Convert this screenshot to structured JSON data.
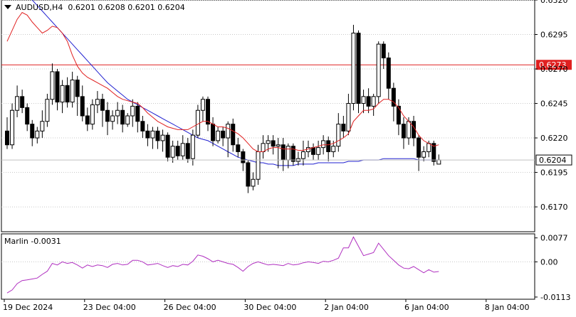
{
  "header": {
    "symbol": "AUDUSD,H4",
    "ohlc": "0.6201 0.6208 0.6201 0.6204"
  },
  "indicator": {
    "label": "Marlin -0.0031",
    "axis_labels": [
      "0.0077",
      "0.00",
      "-0.0113"
    ]
  },
  "colors": {
    "bull": "#ffffff",
    "bear": "#000000",
    "ma_fast": "#e02020",
    "ma_slow": "#2020d0",
    "hline": "#e02020",
    "marlin": "#b030c0",
    "grid": "#c8c8c8",
    "price_tag_bg": "#ffffff"
  },
  "chart_data": {
    "type": "candlestick",
    "price_axis_labels": [
      "0.6320",
      "0.6295",
      "0.6270",
      "0.6245",
      "0.6220",
      "0.6195",
      "0.6170"
    ],
    "price_axis_values": [
      0.632,
      0.6295,
      0.627,
      0.6245,
      0.622,
      0.6195,
      0.617
    ],
    "ylim": [
      0.6152,
      0.632
    ],
    "time_labels": [
      "19 Dec 2024",
      "23 Dec 04:00",
      "26 Dec 04:00",
      "30 Dec 04:00",
      "2 Jan 04:00",
      "6 Jan 04:00",
      "8 Jan 04:00"
    ],
    "time_label_bar_index": [
      0,
      16,
      32,
      48,
      64,
      80,
      96
    ],
    "horizontal_line": {
      "value": 0.6273,
      "label": "0.6273"
    },
    "current_price": {
      "value": 0.6204,
      "label": "0.6204"
    },
    "candles": [
      [
        0.6225,
        0.6215,
        0.6235,
        0.6212
      ],
      [
        0.6215,
        0.624,
        0.6245,
        0.6212
      ],
      [
        0.624,
        0.625,
        0.6258,
        0.6235
      ],
      [
        0.625,
        0.6242,
        0.6255,
        0.6238
      ],
      [
        0.6242,
        0.623,
        0.6245,
        0.6225
      ],
      [
        0.623,
        0.622,
        0.6233,
        0.6214
      ],
      [
        0.622,
        0.6225,
        0.6228,
        0.6216
      ],
      [
        0.6225,
        0.6232,
        0.624,
        0.622
      ],
      [
        0.6232,
        0.6248,
        0.6252,
        0.6228
      ],
      [
        0.6248,
        0.6268,
        0.6274,
        0.6244
      ],
      [
        0.6268,
        0.6246,
        0.627,
        0.624
      ],
      [
        0.6246,
        0.6258,
        0.6262,
        0.6238
      ],
      [
        0.6258,
        0.6246,
        0.6264,
        0.6242
      ],
      [
        0.6246,
        0.6262,
        0.6268,
        0.6242
      ],
      [
        0.6262,
        0.625,
        0.6265,
        0.6236
      ],
      [
        0.625,
        0.6236,
        0.6258,
        0.6232
      ],
      [
        0.6236,
        0.623,
        0.6242,
        0.6225
      ],
      [
        0.623,
        0.6244,
        0.6248,
        0.6226
      ],
      [
        0.6244,
        0.6248,
        0.6254,
        0.6238
      ],
      [
        0.6248,
        0.624,
        0.6252,
        0.6228
      ],
      [
        0.624,
        0.6232,
        0.6246,
        0.6222
      ],
      [
        0.6232,
        0.6236,
        0.624,
        0.6226
      ],
      [
        0.6236,
        0.624,
        0.6246,
        0.623
      ],
      [
        0.624,
        0.623,
        0.6244,
        0.6224
      ],
      [
        0.623,
        0.6236,
        0.6238,
        0.6228
      ],
      [
        0.6236,
        0.6243,
        0.6248,
        0.6228
      ],
      [
        0.6243,
        0.6232,
        0.6246,
        0.6224
      ],
      [
        0.6232,
        0.6225,
        0.6236,
        0.622
      ],
      [
        0.6225,
        0.622,
        0.623,
        0.6214
      ],
      [
        0.622,
        0.6225,
        0.6228,
        0.6212
      ],
      [
        0.6225,
        0.6218,
        0.6228,
        0.6212
      ],
      [
        0.6218,
        0.6222,
        0.6226,
        0.621
      ],
      [
        0.6222,
        0.6206,
        0.6224,
        0.6203
      ],
      [
        0.6206,
        0.6214,
        0.6218,
        0.6202
      ],
      [
        0.6214,
        0.6207,
        0.6218,
        0.6204
      ],
      [
        0.6207,
        0.6216,
        0.6222,
        0.6204
      ],
      [
        0.6216,
        0.6205,
        0.622,
        0.6202
      ],
      [
        0.6205,
        0.6222,
        0.6226,
        0.62
      ],
      [
        0.6222,
        0.624,
        0.6244,
        0.622
      ],
      [
        0.624,
        0.6248,
        0.625,
        0.6232
      ],
      [
        0.6248,
        0.623,
        0.625,
        0.6225
      ],
      [
        0.623,
        0.6218,
        0.6235,
        0.6214
      ],
      [
        0.6218,
        0.6225,
        0.6228,
        0.6216
      ],
      [
        0.6225,
        0.622,
        0.6228,
        0.6214
      ],
      [
        0.622,
        0.623,
        0.6232,
        0.6206
      ],
      [
        0.623,
        0.6215,
        0.6234,
        0.621
      ],
      [
        0.6215,
        0.621,
        0.622,
        0.6206
      ],
      [
        0.621,
        0.6202,
        0.6212,
        0.6196
      ],
      [
        0.6202,
        0.6185,
        0.6204,
        0.618
      ],
      [
        0.6185,
        0.619,
        0.6195,
        0.6182
      ],
      [
        0.619,
        0.621,
        0.6215,
        0.6186
      ],
      [
        0.621,
        0.6216,
        0.6222,
        0.6205
      ],
      [
        0.6216,
        0.6218,
        0.6222,
        0.621
      ],
      [
        0.6218,
        0.6214,
        0.6222,
        0.6208
      ],
      [
        0.6214,
        0.6215,
        0.622,
        0.6198
      ],
      [
        0.6215,
        0.6204,
        0.622,
        0.6196
      ],
      [
        0.6204,
        0.6214,
        0.6216,
        0.6198
      ],
      [
        0.6214,
        0.6203,
        0.6216,
        0.62
      ],
      [
        0.6203,
        0.6205,
        0.621,
        0.62
      ],
      [
        0.6205,
        0.621,
        0.6218,
        0.62
      ],
      [
        0.621,
        0.6213,
        0.6218,
        0.6206
      ],
      [
        0.6213,
        0.6208,
        0.6216,
        0.6204
      ],
      [
        0.6208,
        0.6213,
        0.6218,
        0.6204
      ],
      [
        0.6213,
        0.6218,
        0.6222,
        0.6208
      ],
      [
        0.6218,
        0.621,
        0.6221,
        0.6203
      ],
      [
        0.621,
        0.6214,
        0.6218,
        0.6206
      ],
      [
        0.6214,
        0.623,
        0.6238,
        0.621
      ],
      [
        0.623,
        0.6225,
        0.6236,
        0.622
      ],
      [
        0.6225,
        0.6245,
        0.6252,
        0.6222
      ],
      [
        0.6245,
        0.6296,
        0.6302,
        0.624
      ],
      [
        0.6296,
        0.6245,
        0.6298,
        0.6238
      ],
      [
        0.6245,
        0.625,
        0.6255,
        0.6238
      ],
      [
        0.625,
        0.6243,
        0.6256,
        0.6238
      ],
      [
        0.6243,
        0.625,
        0.6252,
        0.6236
      ],
      [
        0.625,
        0.6288,
        0.629,
        0.6245
      ],
      [
        0.6288,
        0.6278,
        0.629,
        0.627
      ],
      [
        0.6278,
        0.6256,
        0.6282,
        0.6248
      ],
      [
        0.6256,
        0.6243,
        0.626,
        0.6232
      ],
      [
        0.6243,
        0.623,
        0.6248,
        0.6222
      ],
      [
        0.623,
        0.622,
        0.6235,
        0.6212
      ],
      [
        0.622,
        0.6232,
        0.6235,
        0.6215
      ],
      [
        0.6232,
        0.622,
        0.6236,
        0.6214
      ],
      [
        0.622,
        0.6206,
        0.6222,
        0.6196
      ],
      [
        0.6206,
        0.621,
        0.6214,
        0.6203
      ],
      [
        0.621,
        0.6216,
        0.6218,
        0.6206
      ],
      [
        0.6216,
        0.6203,
        0.6218,
        0.62
      ],
      [
        0.6201,
        0.6204,
        0.6208,
        0.6201
      ]
    ],
    "candle_fields": [
      "open",
      "close",
      "high",
      "low"
    ],
    "ma_fast": [
      0.629,
      0.6298,
      0.6306,
      0.6311,
      0.6309,
      0.6304,
      0.63,
      0.6296,
      0.6298,
      0.6301,
      0.63,
      0.6296,
      0.629,
      0.628,
      0.6272,
      0.6267,
      0.6264,
      0.6262,
      0.626,
      0.6258,
      0.6256,
      0.6253,
      0.625,
      0.6248,
      0.6247,
      0.6246,
      0.6245,
      0.6242,
      0.6238,
      0.6235,
      0.6232,
      0.623,
      0.6228,
      0.6227,
      0.6226,
      0.6226,
      0.6226,
      0.6228,
      0.623,
      0.6232,
      0.6232,
      0.623,
      0.6228,
      0.6228,
      0.6227,
      0.6225,
      0.6223,
      0.622,
      0.6216,
      0.6212,
      0.621,
      0.621,
      0.6212,
      0.6213,
      0.6213,
      0.6212,
      0.6212,
      0.6212,
      0.6211,
      0.6211,
      0.6212,
      0.6213,
      0.6214,
      0.6215,
      0.6215,
      0.6216,
      0.6218,
      0.622,
      0.6223,
      0.6232,
      0.6236,
      0.624,
      0.624,
      0.6241,
      0.6245,
      0.6248,
      0.6248,
      0.6246,
      0.6242,
      0.6236,
      0.6232,
      0.6228,
      0.6222,
      0.6218,
      0.6216,
      0.6214,
      0.6215
    ],
    "ma_slow": [
      0.6332,
      0.633,
      0.6328,
      0.6326,
      0.6323,
      0.632,
      0.6316,
      0.6312,
      0.6308,
      0.6304,
      0.63,
      0.6296,
      0.6292,
      0.6288,
      0.6284,
      0.628,
      0.6276,
      0.6272,
      0.6268,
      0.6264,
      0.626,
      0.6257,
      0.6254,
      0.6251,
      0.6248,
      0.6246,
      0.6244,
      0.6242,
      0.624,
      0.6238,
      0.6236,
      0.6234,
      0.6232,
      0.623,
      0.6228,
      0.6226,
      0.6224,
      0.6222,
      0.622,
      0.6219,
      0.6218,
      0.6216,
      0.6214,
      0.6212,
      0.621,
      0.6208,
      0.6206,
      0.6205,
      0.6204,
      0.6203,
      0.6202,
      0.6202,
      0.6201,
      0.6201,
      0.62,
      0.62,
      0.62,
      0.62,
      0.6201,
      0.6201,
      0.6201,
      0.6201,
      0.6202,
      0.6202,
      0.6202,
      0.6202,
      0.6202,
      0.6202,
      0.6203,
      0.6203,
      0.6203,
      0.6204,
      0.6204,
      0.6204,
      0.6204,
      0.6205,
      0.6205,
      0.6205,
      0.6205,
      0.6205,
      0.6205,
      0.6205,
      0.6204,
      0.6204,
      0.6204,
      0.6204,
      0.6204
    ],
    "marlin": {
      "ylim": [
        -0.012,
        0.009
      ],
      "values": [
        -0.01,
        -0.009,
        -0.007,
        -0.006,
        -0.0058,
        -0.0055,
        -0.0052,
        -0.004,
        -0.003,
        -0.0005,
        -0.001,
        0.0,
        -0.0005,
        -0.0002,
        -0.001,
        -0.002,
        -0.001,
        -0.0015,
        -0.001,
        -0.0012,
        -0.0018,
        -0.0008,
        -0.0005,
        -0.001,
        -0.0008,
        0.0005,
        0.0005,
        0.0,
        -0.001,
        -0.0008,
        -0.0005,
        -0.0012,
        -0.0018,
        -0.0012,
        -0.0015,
        -0.0008,
        -0.001,
        0.0002,
        0.0022,
        0.0018,
        0.001,
        0.0,
        0.0005,
        0.0,
        -0.0005,
        -0.0008,
        -0.0018,
        -0.003,
        -0.0015,
        -0.0005,
        0.0,
        -0.0005,
        -0.001,
        -0.0008,
        -0.001,
        -0.0012,
        -0.0005,
        -0.001,
        -0.0008,
        -0.0003,
        0.0,
        -0.0002,
        -0.0005,
        0.0002,
        0.0,
        0.0005,
        0.0012,
        0.0045,
        0.0045,
        0.008,
        0.005,
        0.002,
        0.0025,
        0.003,
        0.006,
        0.004,
        0.002,
        0.0005,
        -0.001,
        -0.002,
        -0.0022,
        -0.0015,
        -0.0025,
        -0.0035,
        -0.0025,
        -0.0033,
        -0.0031
      ]
    }
  }
}
